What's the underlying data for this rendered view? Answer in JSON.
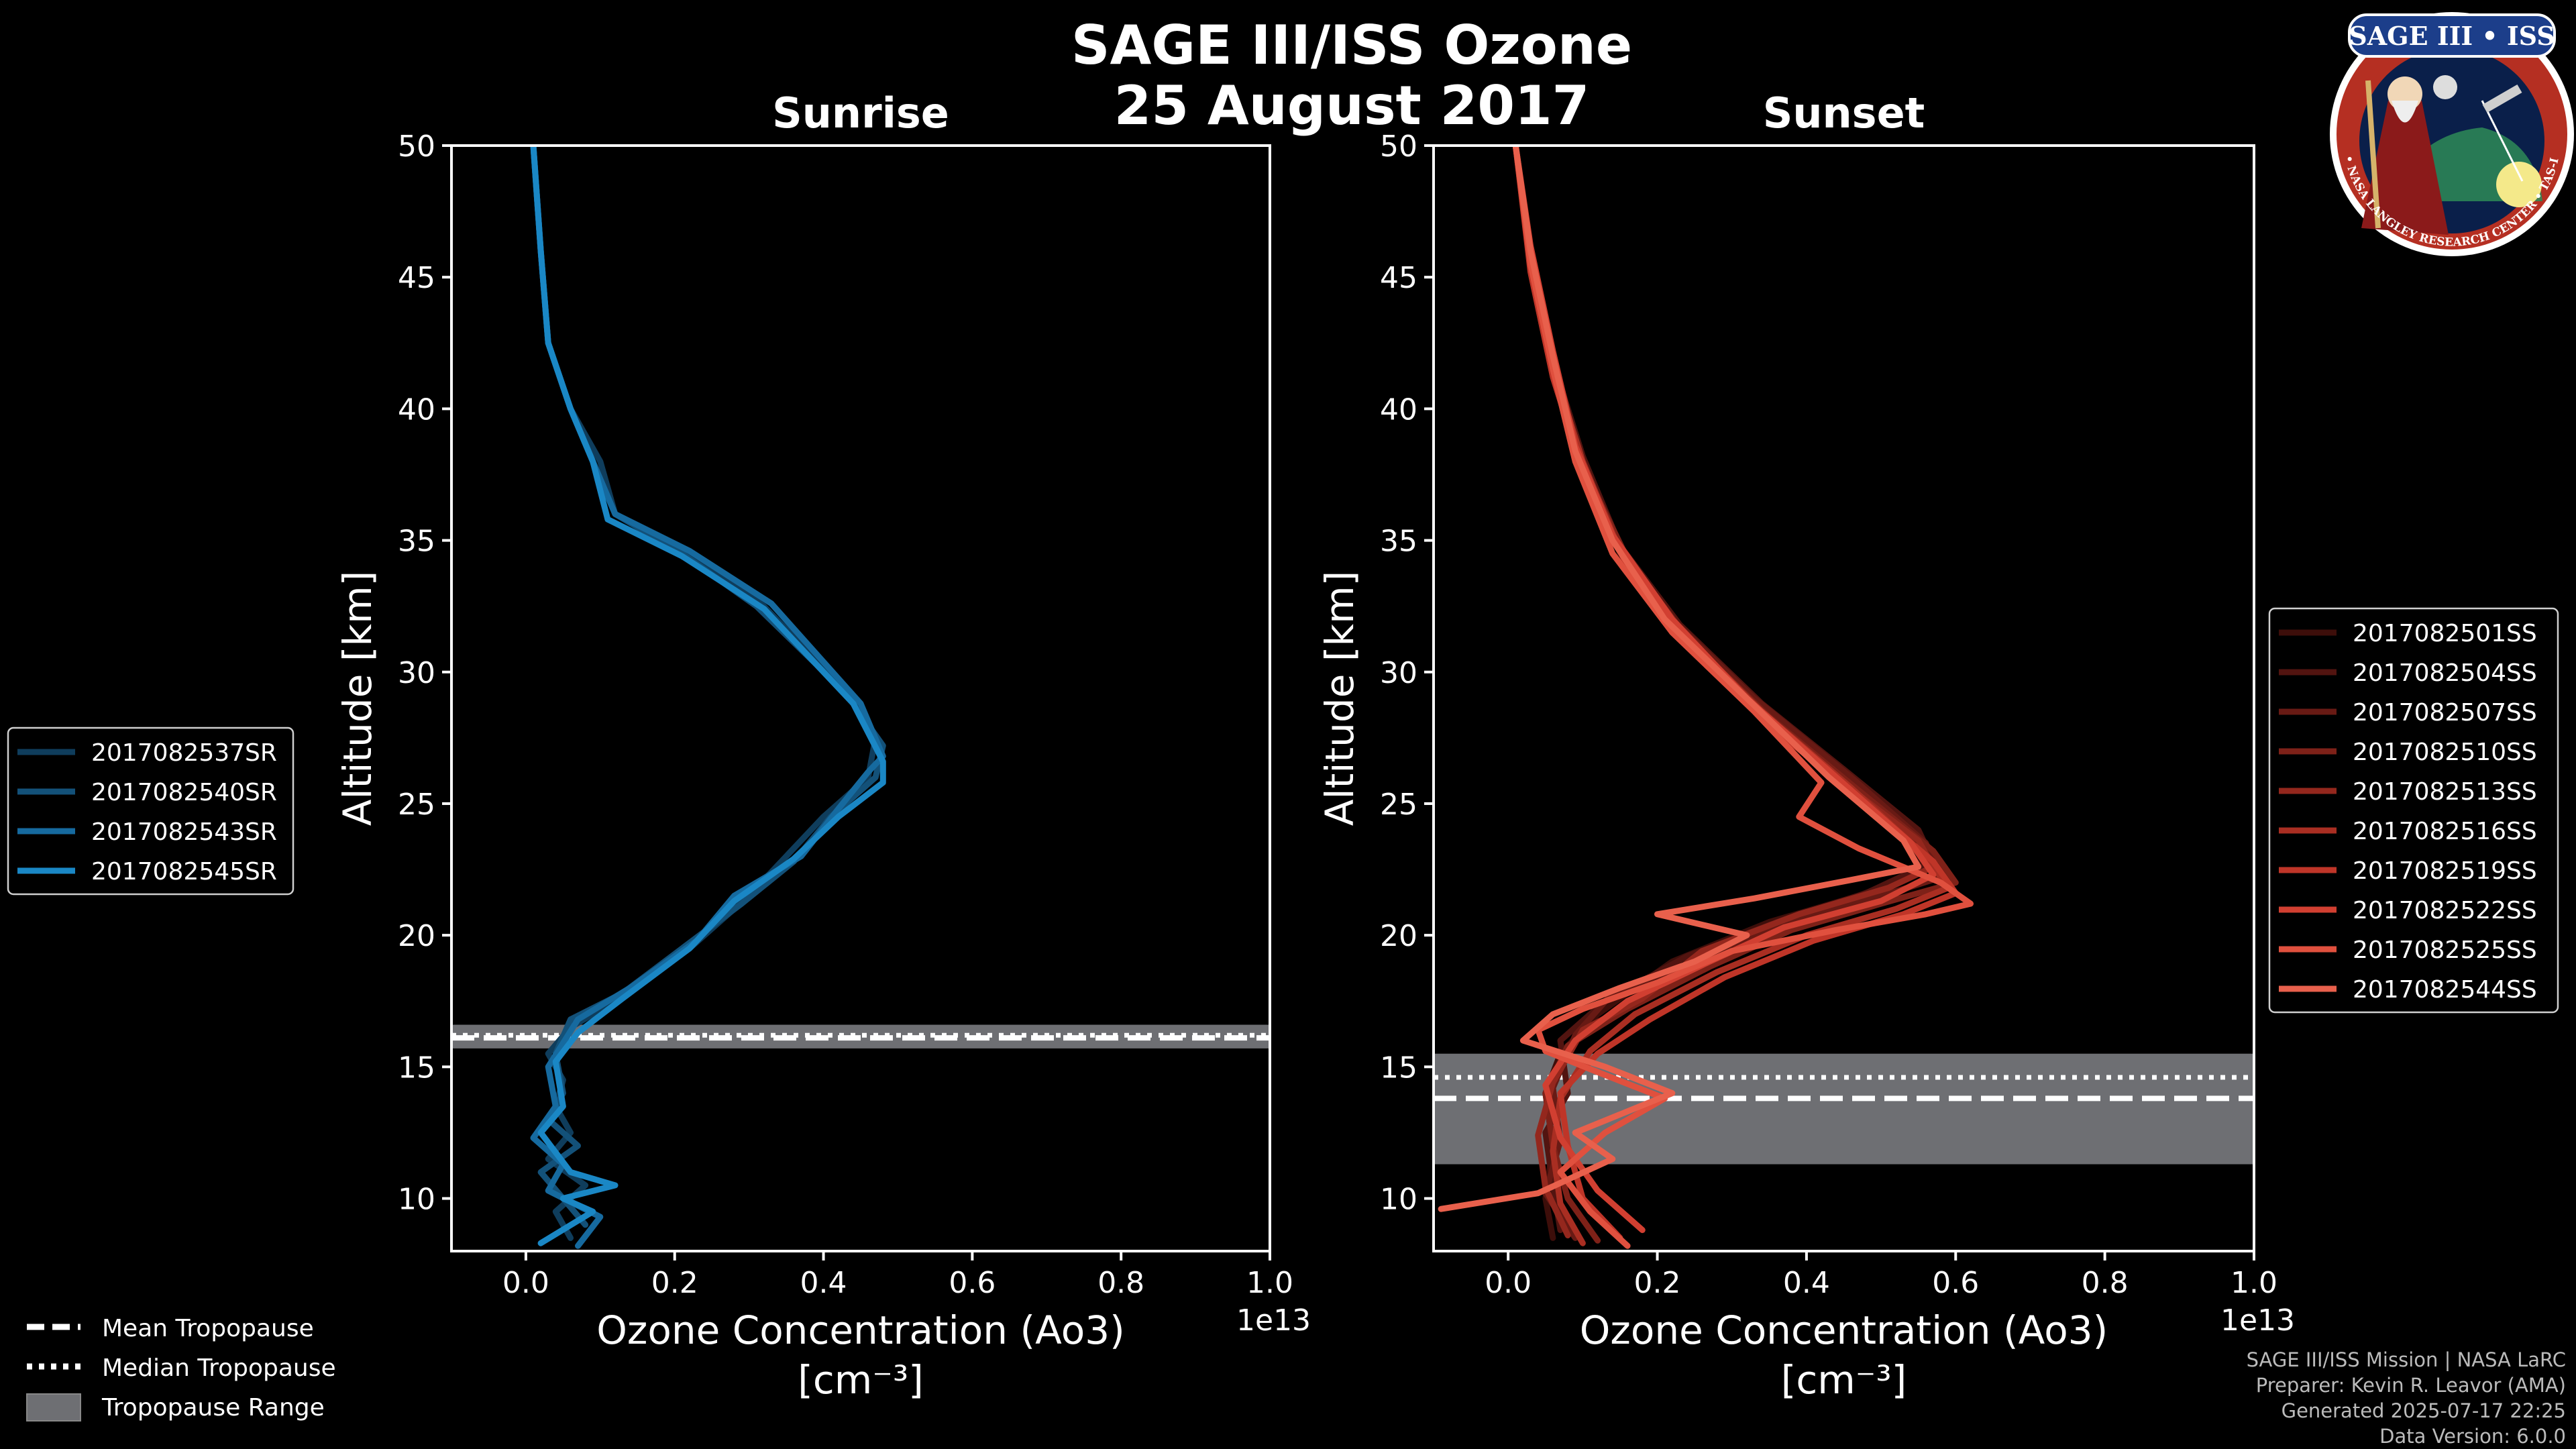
{
  "figure": {
    "title_line1": "SAGE III/ISS Ozone",
    "title_line2": "25 August 2017",
    "badge": {
      "label": "SAGE III • ISS",
      "ring_text": "BALL • NASA LANGLEY RESEARCH CENTER • TAS-I • ESA"
    },
    "footer": [
      "SAGE III/ISS Mission | NASA LaRC",
      "Preparer: Kevin R. Leavor (AMA)",
      "Generated 2025-07-17 22:25",
      "Data Version: 6.0.0"
    ],
    "tropopause_legend": {
      "mean": "Mean Tropopause",
      "median": "Median Tropopause",
      "range": "Tropopause Range"
    },
    "colors": {
      "sunrise": "#1a87c5",
      "sunset": "#e8604c",
      "background": "#000000",
      "range": "#6e6f73"
    }
  },
  "chart_data": [
    {
      "type": "line",
      "title": "Sunrise",
      "xlabel": "Ozone Concentration (Ao3)",
      "xlabel_units": "[cm⁻³]",
      "x_scale_label": "1e13",
      "ylabel": "Altitude [km]",
      "xlim": [
        -0.1,
        1.0
      ],
      "ylim": [
        8,
        50
      ],
      "xticks": [
        0.0,
        0.2,
        0.4,
        0.6,
        0.8,
        1.0
      ],
      "xtick_labels": [
        "0.0",
        "0.2",
        "0.4",
        "0.6",
        "0.8",
        "1.0"
      ],
      "yticks": [
        10,
        15,
        20,
        25,
        30,
        35,
        40,
        45,
        50
      ],
      "ytick_labels": [
        "10",
        "15",
        "20",
        "25",
        "30",
        "35",
        "40",
        "45",
        "50"
      ],
      "tropopause": {
        "mean": 16.1,
        "median": 16.2,
        "range": [
          15.7,
          16.6
        ]
      },
      "series": [
        {
          "name": "2017082537SR",
          "color": "#0f3d5c",
          "x": [
            0.06,
            0.04,
            0.08,
            0.03,
            0.06,
            0.04,
            0.05,
            0.03,
            0.06,
            0.12,
            0.22,
            0.3,
            0.35,
            0.4,
            0.46,
            0.47,
            0.44,
            0.32,
            0.22,
            0.12,
            0.1,
            0.06,
            0.03,
            0.02,
            0.01
          ],
          "y": [
            8.5,
            9.5,
            10.5,
            11.5,
            12.5,
            13.5,
            14.5,
            15.5,
            16.5,
            17.5,
            19.5,
            21.5,
            23.0,
            24.5,
            26.0,
            27.5,
            29.0,
            32.5,
            34.5,
            36.0,
            38.0,
            40.0,
            42.5,
            46.0,
            50.0
          ]
        },
        {
          "name": "2017082540SR",
          "color": "#135179",
          "x": [
            0.08,
            0.05,
            0.02,
            0.07,
            0.03,
            0.05,
            0.04,
            0.06,
            0.13,
            0.21,
            0.29,
            0.36,
            0.41,
            0.47,
            0.48,
            0.43,
            0.31,
            0.21,
            0.12,
            0.09,
            0.06,
            0.03,
            0.02,
            0.01
          ],
          "y": [
            9.0,
            10.0,
            11.0,
            12.0,
            13.0,
            14.0,
            15.5,
            16.8,
            17.8,
            19.5,
            21.2,
            22.8,
            24.5,
            26.0,
            27.2,
            29.2,
            32.5,
            34.5,
            36.0,
            38.0,
            40.0,
            42.5,
            46.0,
            50.0
          ]
        },
        {
          "name": "2017082543SR",
          "color": "#166a9f",
          "x": [
            0.07,
            0.1,
            0.03,
            0.05,
            0.01,
            0.04,
            0.03,
            0.07,
            0.14,
            0.23,
            0.28,
            0.37,
            0.42,
            0.46,
            0.48,
            0.45,
            0.33,
            0.22,
            0.12,
            0.09,
            0.06,
            0.03,
            0.02,
            0.01
          ],
          "y": [
            8.2,
            9.3,
            10.3,
            11.3,
            12.3,
            13.5,
            15.0,
            16.8,
            18.0,
            19.8,
            21.5,
            23.0,
            24.8,
            26.2,
            26.8,
            28.8,
            32.6,
            34.6,
            36.0,
            38.0,
            40.0,
            42.5,
            46.0,
            50.0
          ]
        },
        {
          "name": "2017082545SR",
          "color": "#1a87c5",
          "x": [
            0.02,
            0.09,
            0.05,
            0.12,
            0.06,
            0.02,
            0.05,
            0.04,
            0.07,
            0.13,
            0.22,
            0.28,
            0.36,
            0.42,
            0.48,
            0.48,
            0.44,
            0.32,
            0.21,
            0.11,
            0.09,
            0.06,
            0.03,
            0.02,
            0.01
          ],
          "y": [
            8.3,
            9.5,
            10.0,
            10.5,
            11.0,
            12.5,
            13.5,
            15.2,
            16.3,
            17.6,
            19.5,
            21.3,
            22.9,
            24.5,
            25.8,
            26.6,
            28.8,
            32.4,
            34.4,
            35.8,
            38.0,
            40.0,
            42.5,
            46.0,
            50.0
          ]
        }
      ]
    },
    {
      "type": "line",
      "title": "Sunset",
      "xlabel": "Ozone Concentration (Ao3)",
      "xlabel_units": "[cm⁻³]",
      "x_scale_label": "1e13",
      "ylabel": "Altitude [km]",
      "xlim": [
        -0.1,
        1.0
      ],
      "ylim": [
        8,
        50
      ],
      "xticks": [
        0.0,
        0.2,
        0.4,
        0.6,
        0.8,
        1.0
      ],
      "xtick_labels": [
        "0.0",
        "0.2",
        "0.4",
        "0.6",
        "0.8",
        "1.0"
      ],
      "yticks": [
        10,
        15,
        20,
        25,
        30,
        35,
        40,
        45,
        50
      ],
      "ytick_labels": [
        "10",
        "15",
        "20",
        "25",
        "30",
        "35",
        "40",
        "45",
        "50"
      ],
      "tropopause": {
        "mean": 13.8,
        "median": 14.6,
        "range": [
          11.3,
          15.5
        ]
      },
      "series": [
        {
          "name": "2017082501SS",
          "color": "#3d0e0a",
          "x": [
            0.06,
            0.05,
            0.06,
            0.05,
            0.07,
            0.12,
            0.22,
            0.35,
            0.47,
            0.56,
            0.54,
            0.44,
            0.33,
            0.22,
            0.15,
            0.1,
            0.06,
            0.03,
            0.01
          ],
          "y": [
            8.5,
            10.0,
            12.0,
            14.0,
            15.5,
            17.0,
            19.0,
            20.5,
            21.5,
            22.5,
            23.8,
            26.0,
            28.5,
            31.5,
            34.5,
            38.0,
            41.5,
            45.5,
            50.0
          ]
        },
        {
          "name": "2017082504SS",
          "color": "#521410",
          "x": [
            0.07,
            0.06,
            0.05,
            0.08,
            0.07,
            0.13,
            0.24,
            0.37,
            0.48,
            0.57,
            0.55,
            0.45,
            0.34,
            0.23,
            0.15,
            0.1,
            0.06,
            0.03,
            0.01
          ],
          "y": [
            8.8,
            10.5,
            12.5,
            14.0,
            16.0,
            17.5,
            19.2,
            20.6,
            21.6,
            22.8,
            24.0,
            26.3,
            28.8,
            31.8,
            34.8,
            38.2,
            41.8,
            45.8,
            50.0
          ]
        },
        {
          "name": "2017082507SS",
          "color": "#681a14",
          "x": [
            0.09,
            0.05,
            0.07,
            0.06,
            0.09,
            0.14,
            0.25,
            0.36,
            0.49,
            0.58,
            0.56,
            0.46,
            0.33,
            0.22,
            0.14,
            0.09,
            0.06,
            0.03,
            0.01
          ],
          "y": [
            8.5,
            10.2,
            12.2,
            14.2,
            16.2,
            17.8,
            19.0,
            20.4,
            21.4,
            22.2,
            23.5,
            26.0,
            29.0,
            32.0,
            35.0,
            38.5,
            42.0,
            46.0,
            50.0
          ]
        },
        {
          "name": "2017082510SS",
          "color": "#7e2118",
          "x": [
            0.12,
            0.08,
            0.06,
            0.05,
            0.08,
            0.16,
            0.27,
            0.38,
            0.5,
            0.6,
            0.57,
            0.47,
            0.35,
            0.24,
            0.16,
            0.1,
            0.06,
            0.03,
            0.01
          ],
          "y": [
            8.4,
            10.0,
            12.0,
            14.0,
            15.8,
            17.2,
            18.8,
            20.2,
            21.2,
            22.0,
            23.2,
            25.5,
            28.3,
            31.3,
            34.3,
            37.8,
            41.3,
            45.3,
            50.0
          ]
        },
        {
          "name": "2017082513SS",
          "color": "#94271d",
          "x": [
            0.08,
            0.05,
            0.04,
            0.06,
            0.1,
            0.18,
            0.26,
            0.39,
            0.51,
            0.57,
            0.55,
            0.43,
            0.32,
            0.22,
            0.14,
            0.09,
            0.06,
            0.03,
            0.01
          ],
          "y": [
            8.6,
            10.4,
            12.4,
            14.4,
            16.4,
            17.6,
            19.4,
            20.8,
            21.8,
            22.6,
            23.6,
            26.2,
            29.0,
            32.0,
            35.0,
            38.4,
            42.0,
            46.0,
            50.0
          ]
        },
        {
          "name": "2017082516SS",
          "color": "#a92e22",
          "x": [
            0.1,
            0.07,
            0.06,
            0.07,
            0.11,
            0.17,
            0.28,
            0.4,
            0.52,
            0.59,
            0.56,
            0.46,
            0.34,
            0.23,
            0.15,
            0.1,
            0.06,
            0.03,
            0.01
          ],
          "y": [
            8.3,
            9.8,
            11.8,
            13.8,
            15.6,
            17.0,
            18.6,
            20.0,
            21.0,
            21.8,
            23.0,
            25.6,
            28.5,
            31.6,
            34.6,
            38.0,
            41.6,
            45.6,
            50.0
          ]
        },
        {
          "name": "2017082519SS",
          "color": "#bf3528",
          "x": [
            0.15,
            0.1,
            0.08,
            0.07,
            0.12,
            0.19,
            0.29,
            0.41,
            0.53,
            0.6,
            0.57,
            0.47,
            0.35,
            0.24,
            0.16,
            0.1,
            0.06,
            0.03,
            0.01
          ],
          "y": [
            8.5,
            10.0,
            12.0,
            14.0,
            15.5,
            16.8,
            18.4,
            19.8,
            20.8,
            21.6,
            22.8,
            25.2,
            28.0,
            31.0,
            34.0,
            37.6,
            41.2,
            45.2,
            50.0
          ]
        },
        {
          "name": "2017082522SS",
          "color": "#d13f31",
          "x": [
            0.18,
            0.12,
            0.07,
            0.05,
            0.09,
            0.16,
            0.27,
            0.37,
            0.5,
            0.57,
            0.54,
            0.44,
            0.32,
            0.22,
            0.14,
            0.09,
            0.06,
            0.03,
            0.01
          ],
          "y": [
            8.8,
            10.3,
            12.3,
            14.3,
            16.0,
            17.5,
            19.0,
            20.3,
            21.3,
            22.3,
            23.5,
            26.0,
            29.0,
            32.0,
            35.2,
            38.6,
            42.2,
            46.2,
            50.0
          ]
        },
        {
          "name": "2017082525SS",
          "color": "#e0503e",
          "x": [
            0.16,
            0.11,
            0.07,
            0.13,
            0.21,
            0.12,
            0.05,
            0.04,
            0.1,
            0.2,
            0.3,
            0.44,
            0.56,
            0.62,
            0.58,
            0.47,
            0.39,
            0.42,
            0.33,
            0.22,
            0.14,
            0.09,
            0.06,
            0.03,
            0.01
          ],
          "y": [
            8.2,
            9.5,
            11.0,
            12.5,
            13.8,
            14.8,
            15.6,
            16.4,
            17.2,
            18.2,
            19.4,
            20.2,
            20.8,
            21.2,
            22.0,
            23.3,
            24.5,
            25.8,
            28.5,
            31.5,
            34.5,
            38.0,
            41.5,
            45.5,
            50.0
          ]
        },
        {
          "name": "2017082544SS",
          "color": "#e8604c",
          "x": [
            -0.09,
            0.04,
            0.14,
            0.09,
            0.22,
            0.13,
            0.02,
            0.06,
            0.15,
            0.25,
            0.32,
            0.2,
            0.33,
            0.46,
            0.55,
            0.53,
            0.43,
            0.32,
            0.21,
            0.14,
            0.09,
            0.06,
            0.03,
            0.01
          ],
          "y": [
            9.6,
            10.2,
            11.5,
            12.5,
            14.0,
            15.0,
            16.0,
            17.0,
            18.0,
            19.0,
            20.0,
            20.8,
            21.4,
            22.1,
            22.6,
            23.6,
            26.0,
            29.0,
            32.0,
            35.0,
            38.4,
            42.0,
            46.0,
            50.0
          ]
        }
      ]
    }
  ]
}
